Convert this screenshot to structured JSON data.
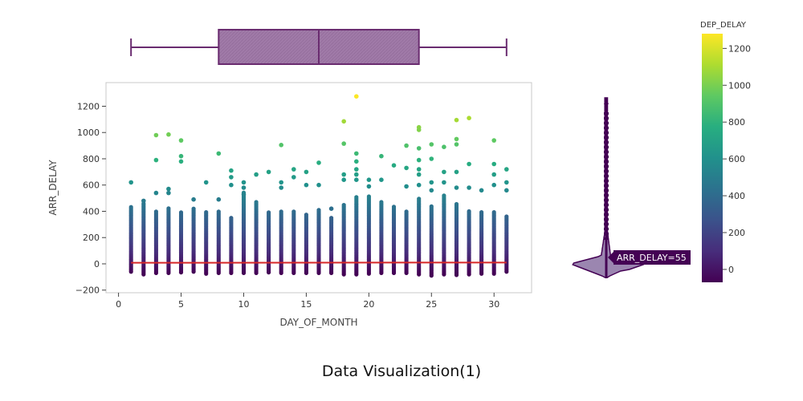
{
  "caption": "Data Visualization(1)",
  "chart_data": {
    "type": "scatter",
    "xlabel": "DAY_OF_MONTH",
    "ylabel": "ARR_DELAY",
    "xlim": [
      -1,
      33
    ],
    "ylim": [
      -220,
      1380
    ],
    "xticks": [
      "0",
      "5",
      "10",
      "15",
      "20",
      "25",
      "30"
    ],
    "yticks": [
      "−200",
      "0",
      "200",
      "400",
      "600",
      "800",
      "1000",
      "1200"
    ],
    "days": [
      1,
      2,
      3,
      4,
      5,
      6,
      7,
      8,
      9,
      10,
      11,
      12,
      13,
      14,
      15,
      16,
      17,
      18,
      19,
      20,
      21,
      22,
      23,
      24,
      25,
      26,
      27,
      28,
      29,
      30,
      31
    ],
    "column_min": [
      -60,
      -80,
      -70,
      -70,
      -65,
      -60,
      -75,
      -70,
      -70,
      -70,
      -70,
      -65,
      -70,
      -70,
      -70,
      -70,
      -70,
      -80,
      -80,
      -75,
      -70,
      -70,
      -70,
      -80,
      -90,
      -80,
      -85,
      -80,
      -75,
      -75,
      -60
    ],
    "column_dense_max": [
      440,
      470,
      400,
      430,
      400,
      430,
      400,
      400,
      350,
      550,
      480,
      400,
      400,
      400,
      380,
      420,
      350,
      450,
      510,
      520,
      480,
      440,
      400,
      500,
      440,
      520,
      460,
      400,
      400,
      400,
      370
    ],
    "outliers": [
      [
        1,
        620
      ],
      [
        2,
        480
      ],
      [
        3,
        980
      ],
      [
        3,
        790
      ],
      [
        3,
        540
      ],
      [
        4,
        985
      ],
      [
        4,
        570
      ],
      [
        4,
        540
      ],
      [
        5,
        940
      ],
      [
        5,
        820
      ],
      [
        5,
        780
      ],
      [
        6,
        490
      ],
      [
        7,
        620
      ],
      [
        8,
        840
      ],
      [
        8,
        490
      ],
      [
        9,
        710
      ],
      [
        9,
        660
      ],
      [
        9,
        600
      ],
      [
        10,
        620
      ],
      [
        10,
        580
      ],
      [
        10,
        530
      ],
      [
        11,
        680
      ],
      [
        12,
        700
      ],
      [
        13,
        905
      ],
      [
        13,
        620
      ],
      [
        13,
        580
      ],
      [
        14,
        720
      ],
      [
        14,
        660
      ],
      [
        15,
        700
      ],
      [
        15,
        600
      ],
      [
        16,
        770
      ],
      [
        16,
        600
      ],
      [
        17,
        420
      ],
      [
        18,
        1085
      ],
      [
        18,
        915
      ],
      [
        18,
        680
      ],
      [
        18,
        640
      ],
      [
        19,
        1275
      ],
      [
        19,
        840
      ],
      [
        19,
        780
      ],
      [
        19,
        720
      ],
      [
        19,
        680
      ],
      [
        19,
        640
      ],
      [
        20,
        640
      ],
      [
        20,
        590
      ],
      [
        21,
        820
      ],
      [
        21,
        640
      ],
      [
        22,
        750
      ],
      [
        23,
        900
      ],
      [
        23,
        730
      ],
      [
        23,
        590
      ],
      [
        24,
        1040
      ],
      [
        24,
        1020
      ],
      [
        24,
        880
      ],
      [
        24,
        790
      ],
      [
        24,
        720
      ],
      [
        24,
        680
      ],
      [
        24,
        600
      ],
      [
        25,
        910
      ],
      [
        25,
        800
      ],
      [
        25,
        620
      ],
      [
        25,
        560
      ],
      [
        26,
        890
      ],
      [
        26,
        700
      ],
      [
        26,
        620
      ],
      [
        27,
        1095
      ],
      [
        27,
        950
      ],
      [
        27,
        910
      ],
      [
        27,
        700
      ],
      [
        27,
        580
      ],
      [
        28,
        1110
      ],
      [
        28,
        760
      ],
      [
        28,
        580
      ],
      [
        29,
        560
      ],
      [
        30,
        940
      ],
      [
        30,
        760
      ],
      [
        30,
        680
      ],
      [
        30,
        600
      ],
      [
        31,
        720
      ],
      [
        31,
        620
      ],
      [
        31,
        560
      ]
    ],
    "trendline": {
      "x": [
        1,
        31
      ],
      "y": [
        8,
        10
      ],
      "color": "#d62728"
    },
    "color_scale": {
      "title": "DEP_DELAY",
      "colormap": "viridis",
      "range": [
        -70,
        1280
      ],
      "ticks": [
        {
          "value": 1200,
          "label": "1200"
        },
        {
          "value": 1000,
          "label": "1000"
        },
        {
          "value": 800,
          "label": "800"
        },
        {
          "value": 600,
          "label": "600"
        },
        {
          "value": 400,
          "label": "400"
        },
        {
          "value": 200,
          "label": "200"
        },
        {
          "value": 0,
          "label": "0"
        }
      ]
    },
    "marginal_x_box": {
      "min": 1,
      "q1": 8,
      "median": 16,
      "q3": 24,
      "max": 31,
      "color": "#6a2c70",
      "fill": "#a07aa8"
    },
    "marginal_y_violin": {
      "min": -90,
      "max": 1280,
      "median": 0,
      "color": "#440154",
      "fill": "#9b86b0",
      "hover_label": "ARR_DELAY=55"
    }
  }
}
